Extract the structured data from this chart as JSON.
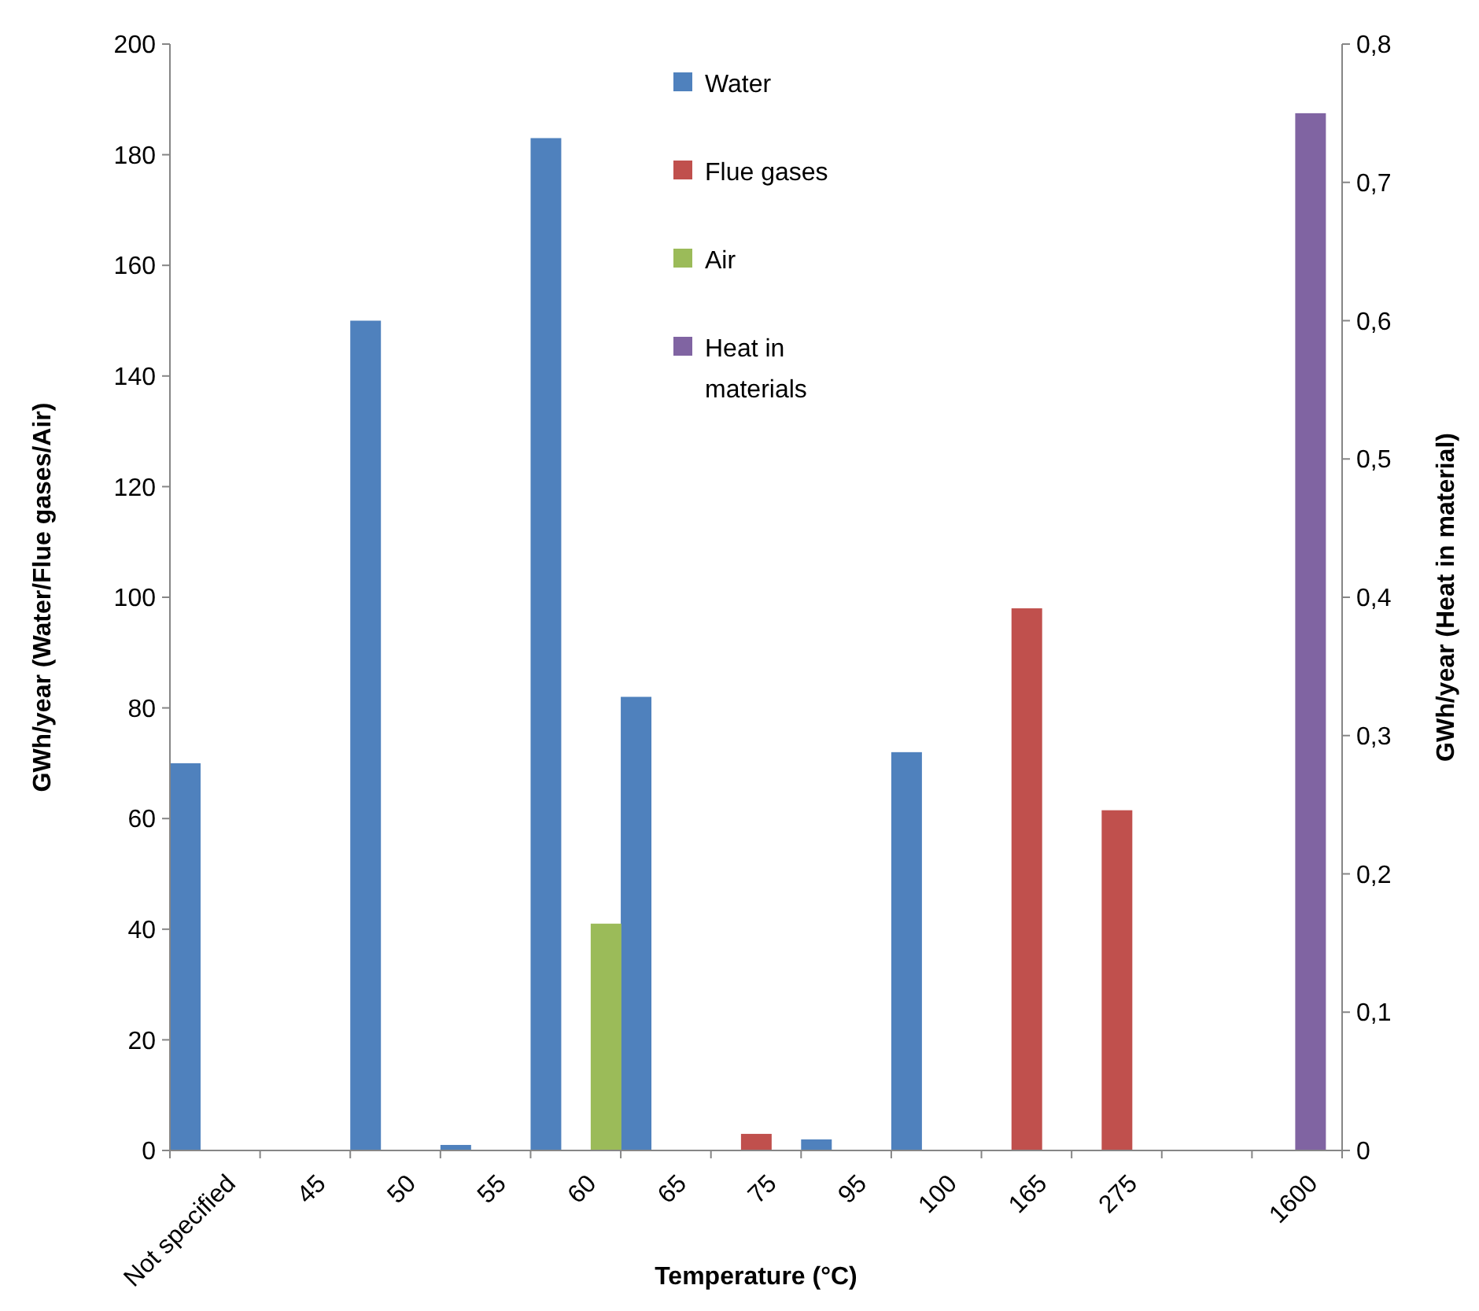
{
  "chart_data": {
    "type": "bar",
    "xlabel": "Temperature (°C)",
    "ylabel": "GWh/year (Water/Flue gases/Air)",
    "y2label": "GWh/year (Heat in material)",
    "categories": [
      "Not specified",
      "45",
      "50",
      "55",
      "60",
      "65",
      "75",
      "95",
      "100",
      "165",
      "275",
      null,
      "1600"
    ],
    "series": [
      {
        "name": "Water",
        "color": "#4f81bd",
        "values": [
          70,
          0,
          150,
          1,
          183,
          82,
          0,
          2,
          72,
          null,
          null,
          null,
          null
        ]
      },
      {
        "name": "Flue gases",
        "color": "#c0504d",
        "values": [
          null,
          null,
          null,
          null,
          null,
          null,
          3,
          null,
          null,
          98,
          61.5,
          null,
          null
        ]
      },
      {
        "name": "Air",
        "color": "#9bbb59",
        "values": [
          null,
          null,
          null,
          null,
          41,
          null,
          null,
          null,
          null,
          null,
          null,
          null,
          null
        ]
      },
      {
        "name": "Heat in materials",
        "color": "#8064a2",
        "axis": "y2",
        "values": [
          null,
          null,
          null,
          null,
          null,
          null,
          null,
          null,
          null,
          null,
          null,
          null,
          0.75
        ]
      }
    ],
    "ylim": [
      0,
      200
    ],
    "yticks": [
      0,
      20,
      40,
      60,
      80,
      100,
      120,
      140,
      160,
      180,
      200
    ],
    "y2lim": [
      0,
      0.8
    ],
    "y2ticks": [
      0,
      {
        "value": 0.1,
        "label": "0,1"
      },
      {
        "value": 0.2,
        "label": "0,2"
      },
      {
        "value": 0.3,
        "label": "0,3"
      },
      {
        "value": 0.4,
        "label": "0,4"
      },
      {
        "value": 0.5,
        "label": "0,5"
      },
      {
        "value": 0.6,
        "label": "0,6"
      },
      {
        "value": 0.7,
        "label": "0,7"
      },
      {
        "value": 0.8,
        "label": "0,8"
      }
    ],
    "grid": false,
    "legend": "top"
  }
}
